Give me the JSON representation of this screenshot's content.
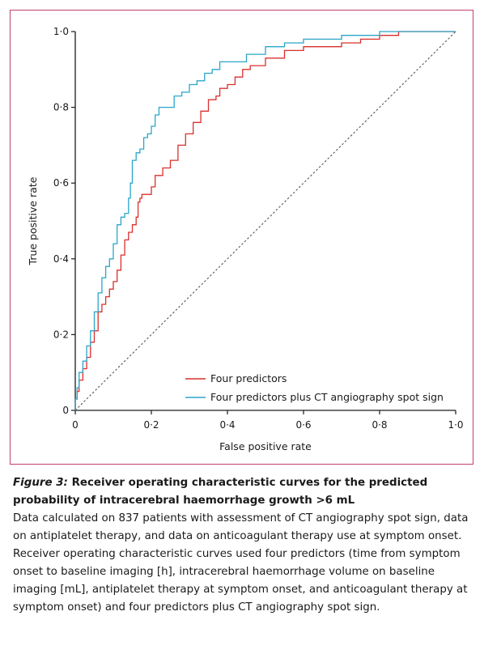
{
  "chart_data": {
    "type": "line",
    "title": "",
    "xlabel": "False positive rate",
    "ylabel": "True positive rate",
    "xlim": [
      0,
      1
    ],
    "ylim": [
      0,
      1
    ],
    "x_ticks": [
      "0",
      "0·2",
      "0·4",
      "0·6",
      "0·8",
      "1·0"
    ],
    "y_ticks": [
      "0",
      "0·2",
      "0·4",
      "0·6",
      "0·8",
      "1·0"
    ],
    "grid": false,
    "legend_position": "bottom-right",
    "reference_line": {
      "style": "dashed",
      "color": "#555555",
      "from": [
        0,
        0
      ],
      "to": [
        1,
        1
      ]
    },
    "series": [
      {
        "name": "Four predictors",
        "color": "#d9302c",
        "points": [
          [
            0,
            0
          ],
          [
            0.005,
            0.03
          ],
          [
            0.01,
            0.05
          ],
          [
            0.02,
            0.08
          ],
          [
            0.03,
            0.11
          ],
          [
            0.04,
            0.14
          ],
          [
            0.05,
            0.18
          ],
          [
            0.06,
            0.21
          ],
          [
            0.07,
            0.26
          ],
          [
            0.08,
            0.28
          ],
          [
            0.09,
            0.3
          ],
          [
            0.1,
            0.32
          ],
          [
            0.11,
            0.34
          ],
          [
            0.12,
            0.37
          ],
          [
            0.13,
            0.41
          ],
          [
            0.14,
            0.45
          ],
          [
            0.15,
            0.47
          ],
          [
            0.16,
            0.49
          ],
          [
            0.165,
            0.51
          ],
          [
            0.17,
            0.55
          ],
          [
            0.175,
            0.56
          ],
          [
            0.18,
            0.57
          ],
          [
            0.2,
            0.57
          ],
          [
            0.21,
            0.59
          ],
          [
            0.23,
            0.62
          ],
          [
            0.25,
            0.64
          ],
          [
            0.27,
            0.66
          ],
          [
            0.29,
            0.7
          ],
          [
            0.31,
            0.73
          ],
          [
            0.33,
            0.76
          ],
          [
            0.35,
            0.79
          ],
          [
            0.37,
            0.82
          ],
          [
            0.38,
            0.83
          ],
          [
            0.4,
            0.85
          ],
          [
            0.42,
            0.86
          ],
          [
            0.44,
            0.88
          ],
          [
            0.46,
            0.9
          ],
          [
            0.48,
            0.91
          ],
          [
            0.5,
            0.91
          ],
          [
            0.55,
            0.93
          ],
          [
            0.6,
            0.95
          ],
          [
            0.65,
            0.96
          ],
          [
            0.7,
            0.96
          ],
          [
            0.75,
            0.97
          ],
          [
            0.8,
            0.98
          ],
          [
            0.85,
            0.99
          ],
          [
            0.9,
            1.0
          ],
          [
            1.0,
            1.0
          ]
        ]
      },
      {
        "name": "Four predictors plus CT angiography spot sign",
        "color": "#2aa6c9",
        "points": [
          [
            0,
            0
          ],
          [
            0.005,
            0.03
          ],
          [
            0.01,
            0.06
          ],
          [
            0.02,
            0.1
          ],
          [
            0.03,
            0.13
          ],
          [
            0.04,
            0.17
          ],
          [
            0.05,
            0.21
          ],
          [
            0.06,
            0.26
          ],
          [
            0.07,
            0.31
          ],
          [
            0.08,
            0.35
          ],
          [
            0.09,
            0.38
          ],
          [
            0.1,
            0.4
          ],
          [
            0.11,
            0.44
          ],
          [
            0.12,
            0.49
          ],
          [
            0.13,
            0.51
          ],
          [
            0.14,
            0.52
          ],
          [
            0.145,
            0.56
          ],
          [
            0.15,
            0.6
          ],
          [
            0.16,
            0.66
          ],
          [
            0.17,
            0.68
          ],
          [
            0.18,
            0.69
          ],
          [
            0.19,
            0.72
          ],
          [
            0.2,
            0.73
          ],
          [
            0.21,
            0.75
          ],
          [
            0.22,
            0.78
          ],
          [
            0.23,
            0.8
          ],
          [
            0.26,
            0.8
          ],
          [
            0.28,
            0.83
          ],
          [
            0.3,
            0.84
          ],
          [
            0.32,
            0.86
          ],
          [
            0.34,
            0.87
          ],
          [
            0.36,
            0.89
          ],
          [
            0.38,
            0.9
          ],
          [
            0.4,
            0.92
          ],
          [
            0.45,
            0.92
          ],
          [
            0.5,
            0.94
          ],
          [
            0.55,
            0.96
          ],
          [
            0.6,
            0.97
          ],
          [
            0.65,
            0.98
          ],
          [
            0.7,
            0.98
          ],
          [
            0.75,
            0.99
          ],
          [
            0.8,
            0.99
          ],
          [
            0.85,
            1.0
          ],
          [
            1.0,
            1.0
          ]
        ]
      }
    ]
  },
  "caption": {
    "figure_label": "Figure 3:",
    "title": "Receiver operating characteristic curves for the predicted probability of intracerebral haemorrhage growth >6 mL",
    "body": "Data calculated on 837 patients with assessment of CT angiography spot sign, data on antiplatelet therapy, and data on anticoagulant therapy use at symptom onset. Receiver operating characteristic curves used four predictors (time from symptom onset to baseline imaging [h], intracerebral haemorrhage volume on baseline imaging [mL], antiplatelet therapy at symptom onset, and anticoagulant therapy at symptom onset) and four predictors plus CT angiography spot sign."
  },
  "colors": {
    "frame": "#c3416b",
    "axis": "#1a1a1a"
  }
}
